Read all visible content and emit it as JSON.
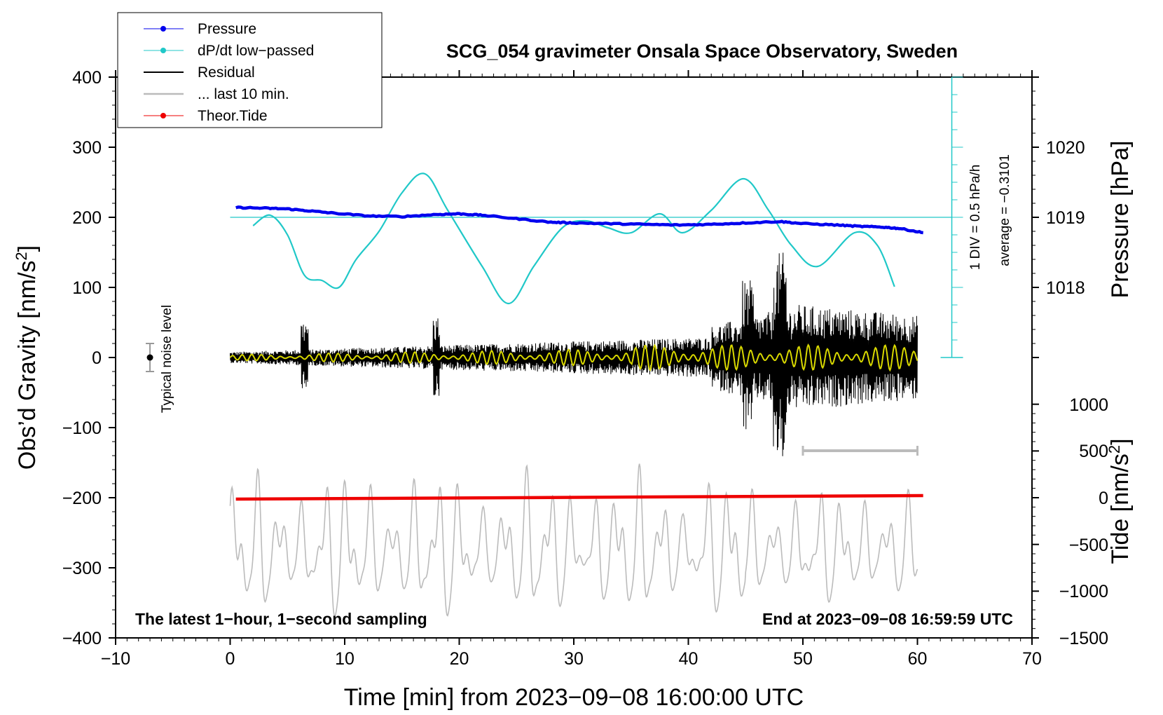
{
  "chart_data": {
    "type": "line",
    "title": "SCG_054 gravimeter Onsala Space Observatory, Sweden",
    "xlabel": "Time [min] from 2023−09−08 16:00:00 UTC",
    "ylabel_left_main": "Obs’d Gravity [nm/s",
    "ylabel_left_sup": "2",
    "ylabel_left_end": "]",
    "ylabel_right_pressure": "Pressure [hPa]",
    "ylabel_right_tide_main": "Tide [nm/s",
    "ylabel_right_tide_sup": "2",
    "ylabel_right_tide_end": "]",
    "xlim": [
      -10,
      70
    ],
    "ylim": [
      -400,
      400
    ],
    "x_ticks": [
      -10,
      0,
      10,
      20,
      30,
      40,
      50,
      60,
      70
    ],
    "x_tick_labels": [
      "−10",
      "0",
      "10",
      "20",
      "30",
      "40",
      "50",
      "60",
      "70"
    ],
    "y_ticks": [
      400,
      300,
      200,
      100,
      0,
      -100,
      -200,
      -300,
      -400
    ],
    "y_tick_labels": [
      "400",
      "300",
      "200",
      "100",
      "0",
      "−100",
      "−200",
      "−300",
      "−400"
    ],
    "pressure_axis": {
      "ticks": [
        1020,
        1019,
        1018
      ],
      "tick_labels": [
        "1020",
        "1019",
        "1018"
      ],
      "gravity_equiv": [
        300,
        200,
        100
      ]
    },
    "tide_axis": {
      "ticks": [
        1000,
        500,
        0,
        -500,
        -1000,
        -1500
      ],
      "tick_labels": [
        "1000",
        "500",
        "0",
        "−500",
        "−1000",
        "−1500"
      ],
      "gravity_equiv": [
        -67,
        -133,
        -200,
        -267,
        -333,
        -400
      ]
    },
    "legend": [
      {
        "label": "Pressure",
        "color": "#0000ee",
        "marker": true
      },
      {
        "label": "dP/dt low−passed",
        "color": "#20c8c8",
        "marker": true
      },
      {
        "label": "Residual",
        "color": "#000000",
        "marker": false
      },
      {
        "label": "... last 10 min.",
        "color": "#bbbbbb",
        "marker": false
      },
      {
        "label": "Theor.Tide",
        "color": "#ee0000",
        "marker": true
      }
    ],
    "series": [
      {
        "name": "Pressure",
        "color": "#0000ee",
        "x": [
          0.5,
          3,
          5,
          7,
          9,
          12,
          15,
          18,
          20,
          22,
          25,
          28,
          30,
          33,
          36,
          39,
          42,
          45,
          48,
          50,
          53,
          55,
          57,
          58.5,
          60.5
        ],
        "y": [
          214,
          213,
          212,
          209,
          206,
          202,
          201,
          204,
          205,
          203,
          198,
          193,
          192,
          191,
          190,
          189,
          190,
          192,
          194,
          191,
          189,
          187,
          186,
          184,
          178
        ]
      },
      {
        "name": "dP/dt low-passed",
        "color": "#20c8c8",
        "x": [
          2,
          3.5,
          5,
          6.5,
          8,
          9.5,
          11,
          13,
          15,
          17,
          19,
          22,
          24.3,
          26.5,
          29,
          31,
          33,
          35,
          37.5,
          39.5,
          42,
          44.8,
          47,
          49,
          51.3,
          54.5,
          56.5,
          58
        ],
        "y": [
          188,
          203,
          175,
          117,
          110,
          100,
          140,
          180,
          235,
          262,
          210,
          130,
          77,
          130,
          185,
          195,
          185,
          178,
          205,
          178,
          210,
          255,
          210,
          160,
          130,
          178,
          160,
          101
        ]
      },
      {
        "name": "dP/dt reference (average = −0.3101)",
        "color": "#20c8c8",
        "x": [
          0,
          63
        ],
        "y": [
          200,
          200
        ]
      },
      {
        "name": "Theor.Tide",
        "color": "#ee0000",
        "x": [
          0.5,
          60.5
        ],
        "y": [
          -202,
          -197
        ]
      }
    ],
    "residual": {
      "x_range": [
        0,
        60
      ],
      "amplitude_envelope_peak": 150,
      "peak_time_min": 48
    },
    "filtered_residual": {
      "color": "#d8d800",
      "x_range": [
        0,
        60
      ]
    },
    "last_10_min": {
      "x_range": [
        0,
        60
      ],
      "center": -275,
      "amplitude": 120,
      "marker_x_range": [
        50,
        60
      ],
      "marker_y": -133
    },
    "annotations": {
      "noise_label": "Typical noise level",
      "noise_center": 0,
      "noise_half_range": 20,
      "noise_x": -7,
      "div_text": "1 DIV = 0.5 hPa/h",
      "average_text": "average = −0.3101",
      "sampling_note": "The latest 1−hour, 1−second sampling",
      "end_note": "End at 2023−09−08 16:59:59 UTC"
    }
  }
}
